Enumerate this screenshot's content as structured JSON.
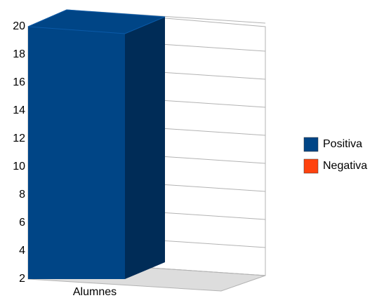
{
  "chart_data": {
    "type": "bar3d",
    "categories": [
      "Alumnes"
    ],
    "series": [
      {
        "name": "Positiva",
        "color": "#004586",
        "values": [
          20
        ]
      },
      {
        "name": "Negativa",
        "color": "#ff420e",
        "values": [
          2
        ]
      }
    ],
    "ylim": [
      2,
      20
    ],
    "yticks": [
      2,
      4,
      6,
      8,
      10,
      12,
      14,
      16,
      18,
      20
    ],
    "grid": true,
    "legend": "right"
  }
}
